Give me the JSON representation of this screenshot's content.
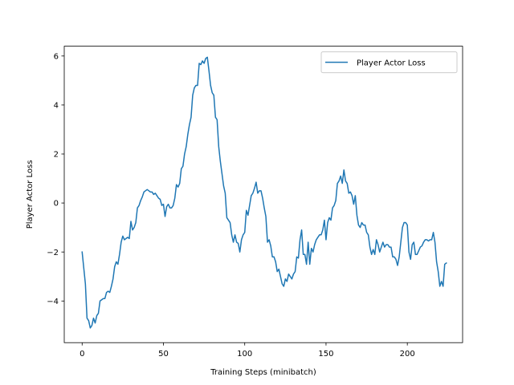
{
  "chart_data": {
    "type": "line",
    "title": "",
    "xlabel": "Training Steps (minibatch)",
    "ylabel": "Player Actor Loss",
    "xlim": [
      -11,
      234
    ],
    "ylim": [
      -5.7,
      6.4
    ],
    "xticks": [
      0,
      50,
      100,
      150,
      200
    ],
    "yticks": [
      -4,
      -2,
      0,
      2,
      4,
      6
    ],
    "grid": false,
    "legend_position": "top-right",
    "series_color": "#1f77b4",
    "series": [
      {
        "name": "Player Actor Loss",
        "points": [
          [
            0,
            -2.0
          ],
          [
            2,
            -3.3
          ],
          [
            3,
            -4.7
          ],
          [
            4,
            -4.8
          ],
          [
            5,
            -5.1
          ],
          [
            6,
            -5.0
          ],
          [
            7,
            -4.7
          ],
          [
            8,
            -4.9
          ],
          [
            9,
            -4.6
          ],
          [
            10,
            -4.5
          ],
          [
            11,
            -4.0
          ],
          [
            12,
            -3.95
          ],
          [
            13,
            -3.9
          ],
          [
            14,
            -3.9
          ],
          [
            15,
            -3.65
          ],
          [
            16,
            -3.6
          ],
          [
            17,
            -3.65
          ],
          [
            18,
            -3.4
          ],
          [
            19,
            -3.1
          ],
          [
            20,
            -2.6
          ],
          [
            21,
            -2.4
          ],
          [
            22,
            -2.5
          ],
          [
            23,
            -2.1
          ],
          [
            24,
            -1.6
          ],
          [
            25,
            -1.35
          ],
          [
            26,
            -1.5
          ],
          [
            27,
            -1.45
          ],
          [
            28,
            -1.4
          ],
          [
            29,
            -1.45
          ],
          [
            30,
            -0.75
          ],
          [
            31,
            -1.1
          ],
          [
            32,
            -1.0
          ],
          [
            33,
            -0.8
          ],
          [
            34,
            -0.2
          ],
          [
            35,
            -0.1
          ],
          [
            36,
            0.1
          ],
          [
            37,
            0.25
          ],
          [
            38,
            0.45
          ],
          [
            39,
            0.5
          ],
          [
            40,
            0.55
          ],
          [
            41,
            0.5
          ],
          [
            42,
            0.45
          ],
          [
            43,
            0.45
          ],
          [
            44,
            0.35
          ],
          [
            45,
            0.4
          ],
          [
            46,
            0.3
          ],
          [
            47,
            0.2
          ],
          [
            48,
            0.15
          ],
          [
            49,
            -0.1
          ],
          [
            50,
            -0.05
          ],
          [
            51,
            -0.55
          ],
          [
            52,
            -0.15
          ],
          [
            53,
            -0.05
          ],
          [
            54,
            -0.2
          ],
          [
            55,
            -0.2
          ],
          [
            56,
            -0.1
          ],
          [
            57,
            0.2
          ],
          [
            58,
            0.75
          ],
          [
            59,
            0.65
          ],
          [
            60,
            0.8
          ],
          [
            61,
            1.4
          ],
          [
            62,
            1.5
          ],
          [
            63,
            2.0
          ],
          [
            64,
            2.3
          ],
          [
            65,
            2.8
          ],
          [
            66,
            3.2
          ],
          [
            67,
            3.5
          ],
          [
            68,
            4.4
          ],
          [
            69,
            4.7
          ],
          [
            70,
            4.8
          ],
          [
            71,
            4.8
          ],
          [
            72,
            5.7
          ],
          [
            73,
            5.65
          ],
          [
            74,
            5.8
          ],
          [
            75,
            5.7
          ],
          [
            76,
            5.9
          ],
          [
            77,
            5.95
          ],
          [
            78,
            5.4
          ],
          [
            79,
            4.8
          ],
          [
            80,
            4.5
          ],
          [
            81,
            4.4
          ],
          [
            82,
            3.5
          ],
          [
            83,
            3.4
          ],
          [
            84,
            2.3
          ],
          [
            85,
            1.7
          ],
          [
            86,
            1.2
          ],
          [
            87,
            0.7
          ],
          [
            88,
            0.4
          ],
          [
            89,
            -0.6
          ],
          [
            90,
            -0.7
          ],
          [
            91,
            -0.8
          ],
          [
            92,
            -1.3
          ],
          [
            93,
            -1.6
          ],
          [
            94,
            -1.3
          ],
          [
            95,
            -1.6
          ],
          [
            96,
            -1.65
          ],
          [
            97,
            -2.0
          ],
          [
            98,
            -1.5
          ],
          [
            99,
            -1.3
          ],
          [
            100,
            -1.2
          ],
          [
            101,
            -0.3
          ],
          [
            102,
            -0.5
          ],
          [
            103,
            -0.1
          ],
          [
            104,
            0.3
          ],
          [
            105,
            0.4
          ],
          [
            106,
            0.6
          ],
          [
            107,
            0.85
          ],
          [
            108,
            0.4
          ],
          [
            109,
            0.5
          ],
          [
            110,
            0.5
          ],
          [
            111,
            0.2
          ],
          [
            112,
            -0.2
          ],
          [
            113,
            -0.55
          ],
          [
            114,
            -1.6
          ],
          [
            115,
            -1.5
          ],
          [
            116,
            -1.75
          ],
          [
            117,
            -2.2
          ],
          [
            118,
            -2.2
          ],
          [
            119,
            -2.4
          ],
          [
            120,
            -2.8
          ],
          [
            121,
            -2.7
          ],
          [
            122,
            -3.0
          ],
          [
            123,
            -3.3
          ],
          [
            124,
            -3.4
          ],
          [
            125,
            -3.1
          ],
          [
            126,
            -3.2
          ],
          [
            127,
            -2.9
          ],
          [
            128,
            -3.0
          ],
          [
            129,
            -3.1
          ],
          [
            130,
            -2.9
          ],
          [
            131,
            -2.8
          ],
          [
            132,
            -2.2
          ],
          [
            133,
            -2.25
          ],
          [
            134,
            -1.5
          ],
          [
            135,
            -1.1
          ],
          [
            136,
            -2.1
          ],
          [
            137,
            -2.1
          ],
          [
            138,
            -2.5
          ],
          [
            139,
            -1.6
          ],
          [
            140,
            -2.5
          ],
          [
            141,
            -1.85
          ],
          [
            142,
            -2.0
          ],
          [
            143,
            -1.7
          ],
          [
            144,
            -1.5
          ],
          [
            145,
            -1.4
          ],
          [
            146,
            -1.3
          ],
          [
            147,
            -1.3
          ],
          [
            148,
            -1.1
          ],
          [
            149,
            -0.7
          ],
          [
            150,
            -1.5
          ],
          [
            151,
            -0.8
          ],
          [
            152,
            -0.6
          ],
          [
            153,
            -0.7
          ],
          [
            154,
            -0.2
          ],
          [
            155,
            -0.1
          ],
          [
            156,
            0.1
          ],
          [
            157,
            0.8
          ],
          [
            158,
            0.9
          ],
          [
            159,
            1.1
          ],
          [
            160,
            0.8
          ],
          [
            161,
            1.35
          ],
          [
            162,
            0.9
          ],
          [
            163,
            0.8
          ],
          [
            164,
            0.4
          ],
          [
            165,
            0.45
          ],
          [
            166,
            0.3
          ],
          [
            167,
            -0.05
          ],
          [
            168,
            0.3
          ],
          [
            169,
            -0.5
          ],
          [
            170,
            -0.9
          ],
          [
            171,
            -1.0
          ],
          [
            172,
            -0.8
          ],
          [
            173,
            -0.9
          ],
          [
            174,
            -0.9
          ],
          [
            175,
            -1.2
          ],
          [
            176,
            -1.3
          ],
          [
            177,
            -1.8
          ],
          [
            178,
            -2.1
          ],
          [
            179,
            -1.9
          ],
          [
            180,
            -2.1
          ],
          [
            181,
            -1.5
          ],
          [
            182,
            -1.7
          ],
          [
            183,
            -2.0
          ],
          [
            184,
            -1.8
          ],
          [
            185,
            -1.6
          ],
          [
            186,
            -1.8
          ],
          [
            187,
            -1.7
          ],
          [
            188,
            -1.7
          ],
          [
            189,
            -1.8
          ],
          [
            190,
            -1.8
          ],
          [
            191,
            -2.2
          ],
          [
            192,
            -2.2
          ],
          [
            193,
            -2.3
          ],
          [
            194,
            -2.55
          ],
          [
            195,
            -2.2
          ],
          [
            196,
            -1.6
          ],
          [
            197,
            -1.0
          ],
          [
            198,
            -0.8
          ],
          [
            199,
            -0.8
          ],
          [
            200,
            -0.9
          ],
          [
            201,
            -2.0
          ],
          [
            202,
            -2.3
          ],
          [
            203,
            -1.7
          ],
          [
            204,
            -1.6
          ],
          [
            205,
            -2.1
          ],
          [
            206,
            -2.1
          ],
          [
            207,
            -1.95
          ],
          [
            208,
            -1.8
          ],
          [
            209,
            -1.75
          ],
          [
            210,
            -1.6
          ],
          [
            211,
            -1.5
          ],
          [
            212,
            -1.5
          ],
          [
            213,
            -1.55
          ],
          [
            214,
            -1.5
          ],
          [
            215,
            -1.5
          ],
          [
            216,
            -1.2
          ],
          [
            217,
            -1.6
          ],
          [
            218,
            -2.4
          ],
          [
            219,
            -2.8
          ],
          [
            220,
            -3.4
          ],
          [
            221,
            -3.2
          ],
          [
            222,
            -3.4
          ],
          [
            223,
            -2.5
          ],
          [
            224,
            -2.45
          ]
        ]
      }
    ]
  }
}
